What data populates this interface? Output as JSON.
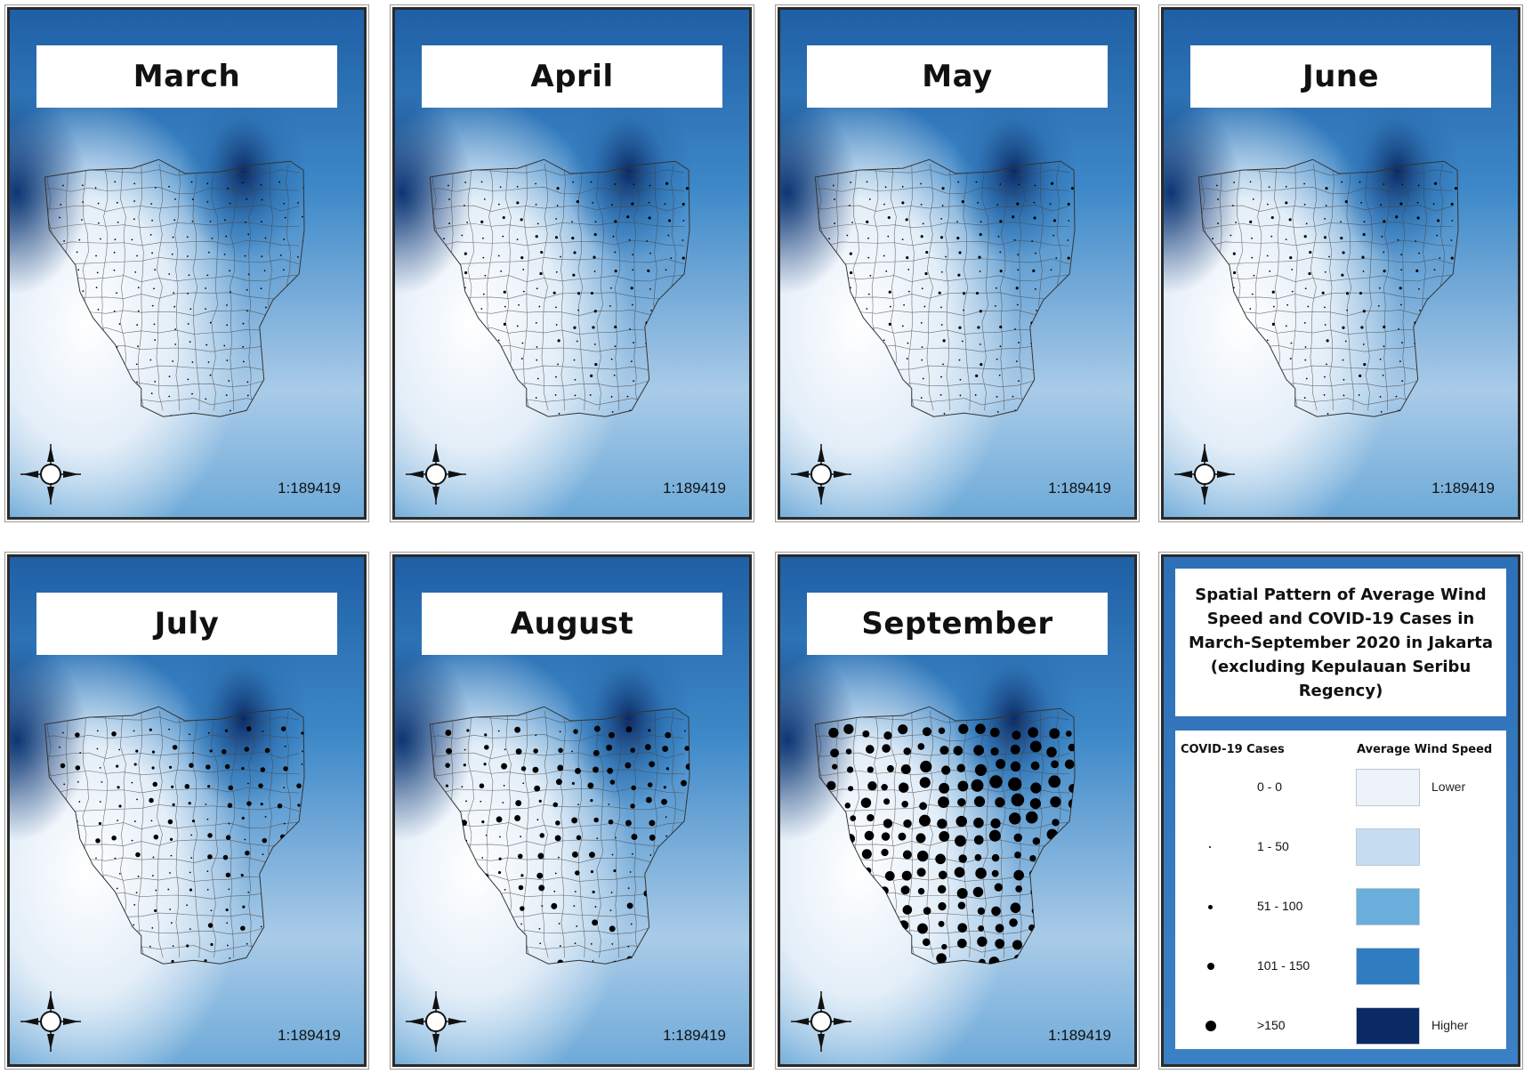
{
  "maps": [
    {
      "month": "March",
      "scale": "1:189419",
      "cases_level": 0
    },
    {
      "month": "April",
      "scale": "1:189419",
      "cases_level": 1
    },
    {
      "month": "May",
      "scale": "1:189419",
      "cases_level": 1
    },
    {
      "month": "June",
      "scale": "1:189419",
      "cases_level": 1
    },
    {
      "month": "July",
      "scale": "1:189419",
      "cases_level": 2
    },
    {
      "month": "August",
      "scale": "1:189419",
      "cases_level": 3
    },
    {
      "month": "September",
      "scale": "1:189419",
      "cases_level": 4
    }
  ],
  "legend": {
    "title": "Spatial Pattern of Average Wind Speed and COVID-19 Cases in March-September 2020 in Jakarta (excluding Kepulauan Seribu Regency)",
    "cases_heading": "COVID-19 Cases",
    "wind_heading": "Average Wind Speed",
    "case_classes": [
      "0 - 0",
      "1 - 50",
      "51 - 100",
      "101 - 150",
      ">150"
    ],
    "wind_colors": [
      "#eef3f9",
      "#c6dcf0",
      "#6aaedb",
      "#2f7cc0",
      "#0b2a63"
    ],
    "wind_low_label": "Lower",
    "wind_high_label": "Higher"
  },
  "compass": {
    "north": "N",
    "south": "S",
    "east": "E",
    "west": "W"
  },
  "colors": {
    "wind_high": "#0b2a63",
    "wind_mid": "#3d88c8",
    "wind_low": "#ffffff"
  }
}
